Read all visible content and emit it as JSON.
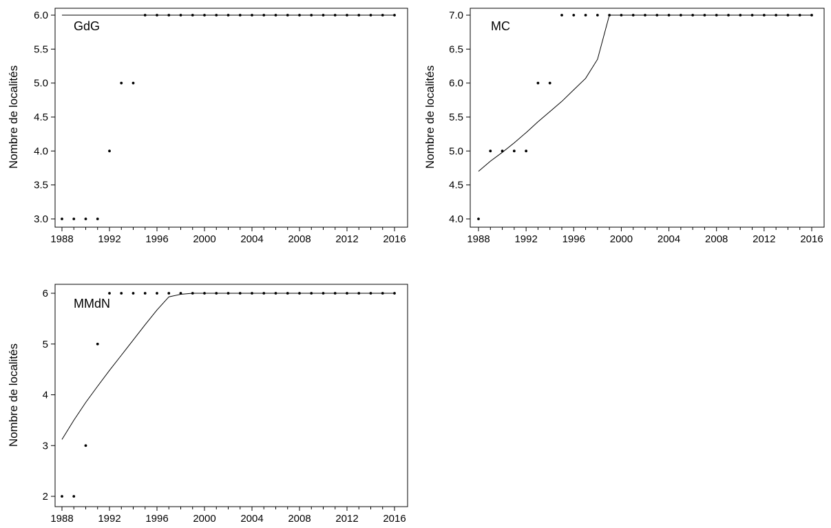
{
  "chart_data": [
    {
      "type": "scatter",
      "title": "",
      "label": "GdG",
      "xlabel": "",
      "ylabel": "Nombre de localités",
      "xlim": [
        1988,
        2016
      ],
      "ylim": [
        3.0,
        6.0
      ],
      "x_ticks": [
        "1988",
        "1992",
        "1996",
        "2000",
        "2004",
        "2008",
        "2012",
        "2016"
      ],
      "y_ticks": [
        "3.0",
        "3.5",
        "4.0",
        "4.5",
        "5.0",
        "5.5",
        "6.0"
      ],
      "grid": false,
      "series": [
        {
          "x": [
            1988,
            1989,
            1990,
            1991,
            1992,
            1993,
            1994,
            1995,
            1996,
            1997,
            1998,
            1999,
            2000,
            2001,
            2002,
            2003,
            2004,
            2005,
            2006,
            2007,
            2008,
            2009,
            2010,
            2011,
            2012,
            2013,
            2014,
            2015,
            2016
          ],
          "y": [
            3,
            3,
            3,
            3,
            4,
            5,
            5,
            6,
            6,
            6,
            6,
            6,
            6,
            6,
            6,
            6,
            6,
            6,
            6,
            6,
            6,
            6,
            6,
            6,
            6,
            6,
            6,
            6,
            6
          ]
        },
        {
          "x": [
            1988,
            2016
          ],
          "y": [
            6.0,
            6.0
          ]
        }
      ]
    },
    {
      "type": "scatter",
      "title": "",
      "label": "MC",
      "xlabel": "",
      "ylabel": "Nombre de localités",
      "xlim": [
        1988,
        2016
      ],
      "ylim": [
        4.0,
        7.0
      ],
      "x_ticks": [
        "1988",
        "1992",
        "1996",
        "2000",
        "2004",
        "2008",
        "2012",
        "2016"
      ],
      "y_ticks": [
        "4.0",
        "4.5",
        "5.0",
        "5.5",
        "6.0",
        "6.5",
        "7.0"
      ],
      "grid": false,
      "series": [
        {
          "x": [
            1988,
            1989,
            1990,
            1991,
            1992,
            1993,
            1994,
            1995,
            1996,
            1997,
            1998,
            1999,
            2000,
            2001,
            2002,
            2003,
            2004,
            2005,
            2006,
            2007,
            2008,
            2009,
            2010,
            2011,
            2012,
            2013,
            2014,
            2015,
            2016
          ],
          "y": [
            4,
            5,
            5,
            5,
            5,
            6,
            6,
            7,
            7,
            7,
            7,
            7,
            7,
            7,
            7,
            7,
            7,
            7,
            7,
            7,
            7,
            7,
            7,
            7,
            7,
            7,
            7,
            7,
            7
          ]
        },
        {
          "x": [
            1988,
            1989,
            1990,
            1991,
            1992,
            1993,
            1994,
            1995,
            1996,
            1997,
            1998,
            1999,
            2016
          ],
          "y": [
            4.7,
            4.85,
            4.98,
            5.12,
            5.27,
            5.43,
            5.58,
            5.73,
            5.9,
            6.07,
            6.35,
            7.0,
            7.0
          ]
        }
      ]
    },
    {
      "type": "scatter",
      "title": "",
      "label": "MMdN",
      "xlabel": "",
      "ylabel": "Nombre de localités",
      "xlim": [
        1988,
        2016
      ],
      "ylim": [
        2,
        6
      ],
      "x_ticks": [
        "1988",
        "1992",
        "1996",
        "2000",
        "2004",
        "2008",
        "2012",
        "2016"
      ],
      "y_ticks": [
        "2",
        "3",
        "4",
        "5",
        "6"
      ],
      "grid": false,
      "series": [
        {
          "x": [
            1988,
            1989,
            1990,
            1991,
            1992,
            1993,
            1994,
            1995,
            1996,
            1997,
            1998,
            1999,
            2000,
            2001,
            2002,
            2003,
            2004,
            2005,
            2006,
            2007,
            2008,
            2009,
            2010,
            2011,
            2012,
            2013,
            2014,
            2015,
            2016
          ],
          "y": [
            2,
            2,
            3,
            5,
            6,
            6,
            6,
            6,
            6,
            6,
            6,
            6,
            6,
            6,
            6,
            6,
            6,
            6,
            6,
            6,
            6,
            6,
            6,
            6,
            6,
            6,
            6,
            6,
            6
          ]
        },
        {
          "x": [
            1988,
            1989,
            1990,
            1991,
            1992,
            1993,
            1994,
            1995,
            1996,
            1997,
            1998,
            1999,
            2016
          ],
          "y": [
            3.12,
            3.5,
            3.85,
            4.17,
            4.48,
            4.78,
            5.08,
            5.38,
            5.67,
            5.93,
            5.98,
            6.0,
            6.0
          ]
        }
      ]
    }
  ]
}
